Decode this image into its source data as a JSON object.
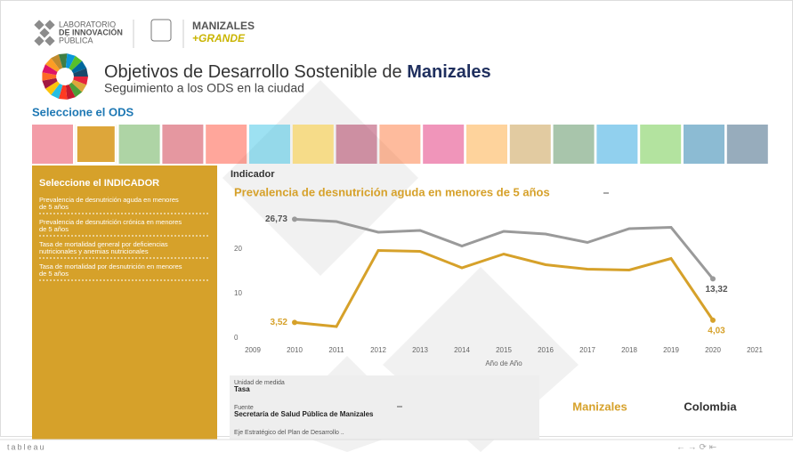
{
  "header": {
    "lab_logo": [
      "LABORATORIO",
      "DE INNOVACIÓN",
      "PÚBLICA"
    ],
    "city_logo": [
      "MANIZALES",
      "+GRANDE"
    ],
    "title": "Objetivos de Desarrollo Sostenible de ",
    "title_bold": "Manizales",
    "subtitle": "Seguimiento a los ODS en la ciudad"
  },
  "ods_selector": {
    "label": "Seleccione el ODS"
  },
  "indicator_panel": {
    "title": "Seleccione el INDICADOR",
    "items": [
      [
        "Prevalencia de desnutrición aguda en menores",
        "de 5 años"
      ],
      [
        "Prevalencia de desnutrición crónica en menores",
        "de 5 años"
      ],
      [
        "Tasa de mortalidad general por deficiencias",
        "nutricionales y anemias nutricionales"
      ],
      [
        "Tasa de mortalidad por desnutrición en menores",
        "de 5 años"
      ]
    ]
  },
  "indicator_label": "Indicador",
  "chart_data": {
    "type": "line",
    "title": "Prevalencia de desnutrición aguda en menores de 5 años",
    "x_label": "Año de Año",
    "x": [
      2010,
      2011,
      2012,
      2013,
      2014,
      2015,
      2016,
      2017,
      2018,
      2019,
      2020
    ],
    "xlim": [
      2009,
      2021
    ],
    "xticks": [
      2009,
      2010,
      2011,
      2012,
      2013,
      2014,
      2015,
      2016,
      2017,
      2018,
      2019,
      2020,
      2021
    ],
    "ylim": [
      -1,
      31
    ],
    "yticks": [
      0,
      10,
      20
    ],
    "series": [
      {
        "name": "Colombia",
        "color": "#9a9a9a",
        "values": [
          26.73,
          26.2,
          23.8,
          24.2,
          20.7,
          24.0,
          23.4,
          21.5,
          24.6,
          24.9,
          13.32
        ],
        "value_labels": [
          "26,73",
          null,
          null,
          null,
          null,
          null,
          null,
          null,
          null,
          null,
          "13,32"
        ]
      },
      {
        "name": "Manizales",
        "color": "#d6a12a",
        "values": [
          3.52,
          2.6,
          19.7,
          19.5,
          15.8,
          18.9,
          16.5,
          15.5,
          15.3,
          17.9,
          4.03
        ],
        "value_labels": [
          "3,52",
          null,
          null,
          null,
          null,
          null,
          null,
          null,
          null,
          null,
          "4,03"
        ]
      }
    ]
  },
  "info": {
    "unit_label": "Unidad de medida",
    "unit": "Tasa",
    "source_label": "Fuente",
    "source": "Secretaría de Salud Pública de Manizales",
    "axis_label": "Eje Estratégico del Plan de Desarrollo .."
  },
  "footer": {
    "brand": "tableau"
  }
}
